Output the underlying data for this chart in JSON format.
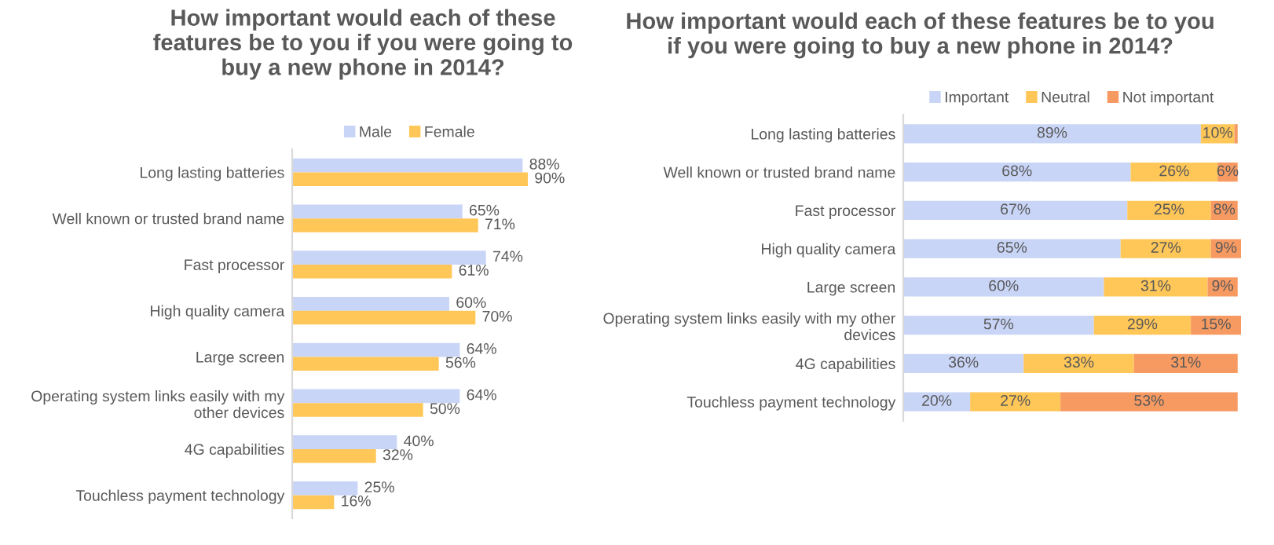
{
  "chart_data": [
    {
      "type": "bar",
      "orientation": "horizontal",
      "title": "How important would each of these\nfeatures be to you if you were going to\nbuy a new phone in 2014?",
      "legend": "top",
      "categories": [
        "Long lasting batteries",
        "Well known or trusted brand name",
        "Fast processor",
        "High quality camera",
        "Large screen",
        "Operating system links easily with my\nother devices",
        "4G capabilities",
        "Touchless payment technology"
      ],
      "series": [
        {
          "name": "Male",
          "color": "#c9d5f7",
          "values": [
            88,
            65,
            74,
            60,
            64,
            64,
            40,
            25
          ],
          "value_labels": [
            "88%",
            "65%",
            "74%",
            "60%",
            "64%",
            "64%",
            "40%",
            "25%"
          ]
        },
        {
          "name": "Female",
          "color": "#ffc658",
          "values": [
            90,
            71,
            61,
            70,
            56,
            50,
            32,
            16
          ],
          "value_labels": [
            "90%",
            "71%",
            "61%",
            "70%",
            "56%",
            "50%",
            "32%",
            "16%"
          ]
        }
      ]
    },
    {
      "type": "bar",
      "orientation": "horizontal",
      "stacked": true,
      "title": "How important would each of these features be to you\nif you were going to buy a new phone in 2014?",
      "legend": "top",
      "categories": [
        "Long lasting batteries",
        "Well known or trusted brand name",
        "Fast processor",
        "High quality camera",
        "Large screen",
        "Operating system links easily with my other\ndevices",
        "4G capabilities",
        "Touchless payment technology"
      ],
      "series": [
        {
          "name": "Important",
          "color": "#c9d5f7",
          "values": [
            89,
            68,
            67,
            65,
            60,
            57,
            36,
            20
          ],
          "value_labels": [
            "89%",
            "68%",
            "67%",
            "65%",
            "60%",
            "57%",
            "36%",
            "20%"
          ]
        },
        {
          "name": "Neutral",
          "color": "#ffc658",
          "values": [
            10,
            26,
            25,
            27,
            31,
            29,
            33,
            27
          ],
          "value_labels": [
            "10%",
            "26%",
            "25%",
            "27%",
            "31%",
            "29%",
            "33%",
            "27%"
          ]
        },
        {
          "name": "Not important",
          "color": "#f79a62",
          "values": [
            1,
            6,
            8,
            9,
            9,
            15,
            31,
            53
          ],
          "value_labels": [
            null,
            "6%",
            "8%",
            "9%",
            "9%",
            "15%",
            "31%",
            "53%"
          ]
        }
      ]
    }
  ]
}
